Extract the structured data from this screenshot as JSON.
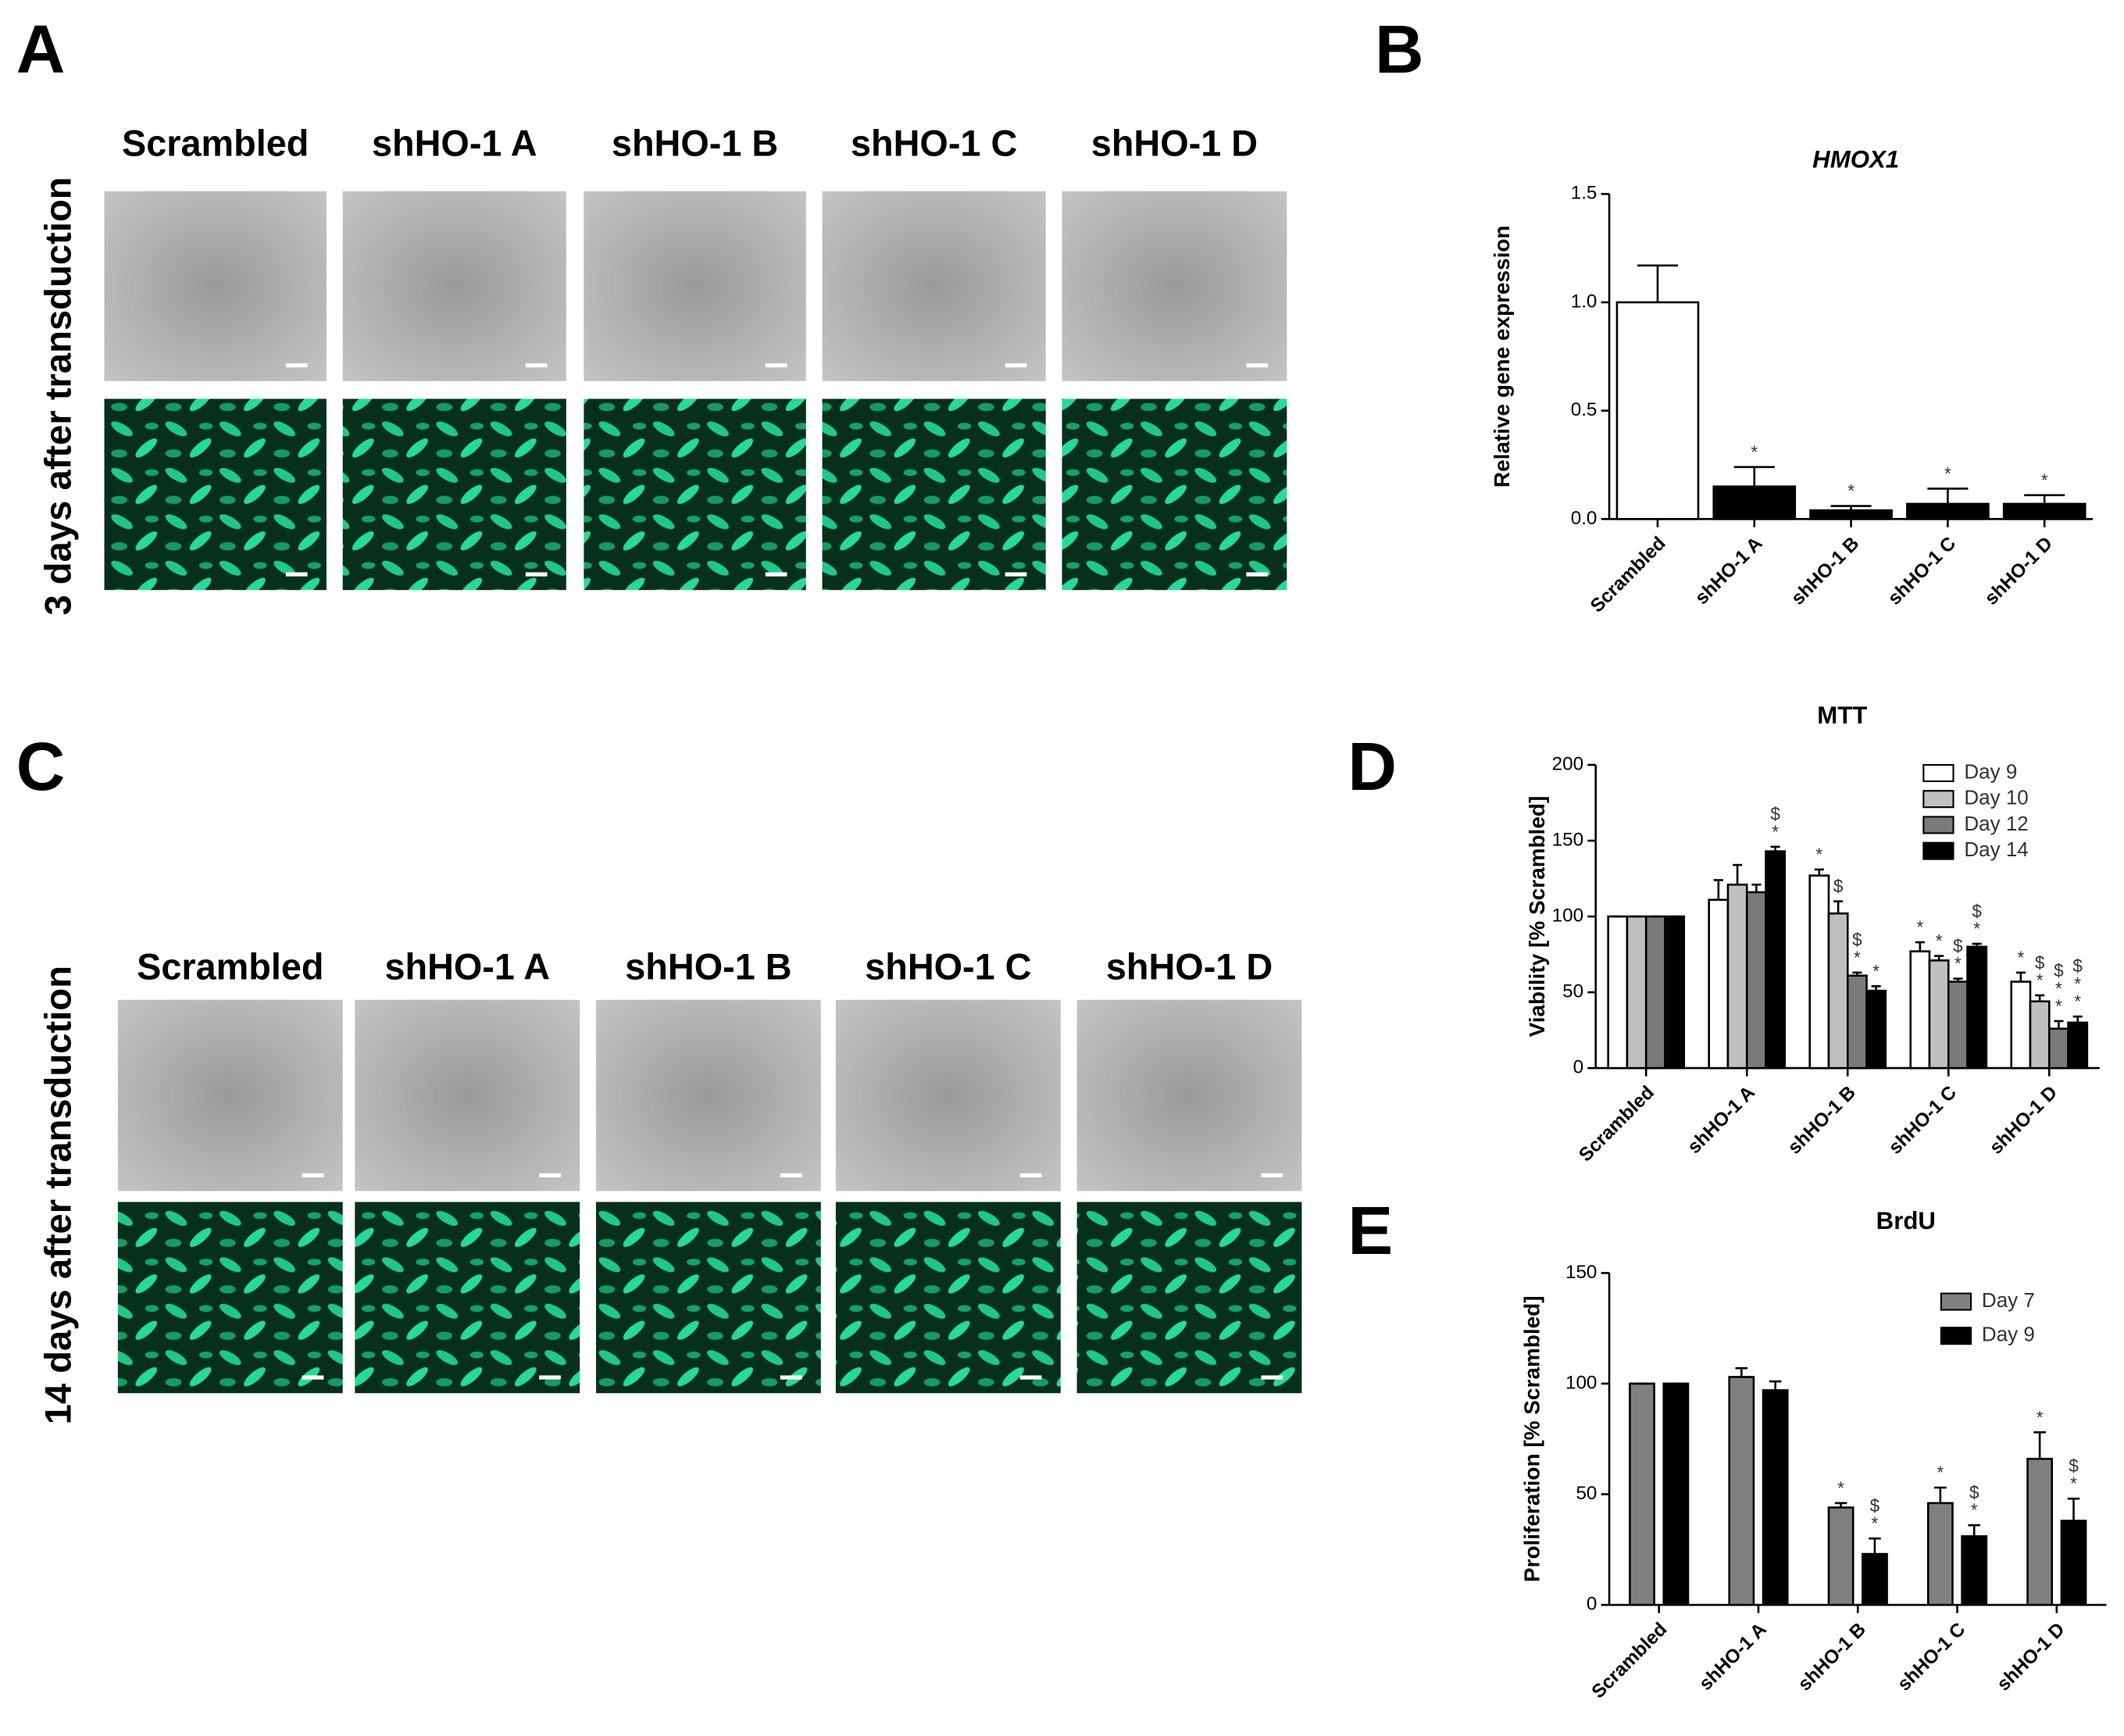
{
  "panels": {
    "letters": [
      "A",
      "B",
      "C",
      "D",
      "E"
    ],
    "microscopy": [
      {
        "side_label": "3 days after transduction",
        "conditions": [
          "Scrambled",
          "shHO-1 A",
          "shHO-1 B",
          "shHO-1 C",
          "shHO-1 D"
        ]
      },
      {
        "side_label": "14 days after transduction",
        "conditions": [
          "Scrambled",
          "shHO-1 A",
          "shHO-1 B",
          "shHO-1 C",
          "shHO-1 D"
        ]
      }
    ]
  },
  "chart_data": [
    {
      "type": "bar",
      "title": "HMOX1",
      "y_label": "Relative gene expression",
      "categories": [
        "Scrambled",
        "shHO-1 A",
        "shHO-1 B",
        "shHO-1 C",
        "shHO-1 D"
      ],
      "values": [
        1.0,
        0.15,
        0.04,
        0.07,
        0.07
      ],
      "errors": [
        0.17,
        0.09,
        0.02,
        0.07,
        0.04
      ],
      "colors": [
        "#ffffff",
        "#000000",
        "#000000",
        "#000000",
        "#000000"
      ],
      "annotations": [
        null,
        [
          "*"
        ],
        [
          "*"
        ],
        [
          "*"
        ],
        [
          "*"
        ]
      ],
      "ylim": [
        0,
        1.5
      ],
      "yticks": [
        {
          "value": 0,
          "label": "0.0"
        },
        0.5,
        {
          "value": 1,
          "label": "1.0"
        },
        1.5
      ]
    },
    {
      "type": "bar",
      "title": "MTT",
      "y_label": "Viability [% Scrambled]",
      "categories": [
        "Scrambled",
        "shHO-1 A",
        "shHO-1 B",
        "shHO-1 C",
        "shHO-1 D"
      ],
      "series": [
        {
          "name": "Day 9",
          "color": "#ffffff",
          "values": [
            100,
            111,
            127,
            77,
            57
          ],
          "errors": [
            0,
            13,
            4,
            6,
            6
          ],
          "annotations": [
            null,
            null,
            [
              "*"
            ],
            [
              "*"
            ],
            [
              "*"
            ]
          ]
        },
        {
          "name": "Day 10",
          "color": "#c0c0c0",
          "values": [
            100,
            121,
            102,
            71,
            44
          ],
          "errors": [
            0,
            13,
            8,
            3,
            4
          ],
          "annotations": [
            null,
            null,
            [
              "$"
            ],
            [
              "*"
            ],
            [
              "*",
              "$"
            ]
          ]
        },
        {
          "name": "Day 12",
          "color": "#7a7a7a",
          "values": [
            100,
            116,
            61,
            57,
            26
          ],
          "errors": [
            0,
            5,
            2,
            2,
            5
          ],
          "annotations": [
            null,
            null,
            [
              "*",
              "$"
            ],
            [
              "*",
              "$"
            ],
            [
              "*",
              "*",
              "$"
            ]
          ]
        },
        {
          "name": "Day 14",
          "color": "#000000",
          "values": [
            100,
            143,
            51,
            80,
            30
          ],
          "errors": [
            0,
            3,
            3,
            2,
            4
          ],
          "annotations": [
            null,
            [
              "*",
              "$"
            ],
            [
              "*"
            ],
            [
              "*",
              "$"
            ],
            [
              "*",
              "*",
              "$"
            ]
          ]
        }
      ],
      "ylim": [
        0,
        200
      ],
      "yticks": [
        0,
        50,
        100,
        150,
        200
      ]
    },
    {
      "type": "bar",
      "title": "BrdU",
      "y_label": "Proliferation [% Scrambled]",
      "categories": [
        "Scrambled",
        "shHO-1 A",
        "shHO-1 B",
        "shHO-1 C",
        "shHO-1 D"
      ],
      "series": [
        {
          "name": "Day 7",
          "color": "#808080",
          "values": [
            100,
            103,
            44,
            46,
            66
          ],
          "errors": [
            0,
            4,
            2,
            7,
            12
          ],
          "annotations": [
            null,
            null,
            [
              "*"
            ],
            [
              "*"
            ],
            [
              "*"
            ]
          ]
        },
        {
          "name": "Day 9",
          "color": "#000000",
          "values": [
            100,
            97,
            23,
            31,
            38
          ],
          "errors": [
            0,
            4,
            7,
            5,
            10
          ],
          "annotations": [
            null,
            null,
            [
              "*",
              "$"
            ],
            [
              "*",
              "$"
            ],
            [
              "*",
              "$"
            ]
          ]
        }
      ],
      "ylim": [
        0,
        150
      ],
      "yticks": [
        0,
        50,
        100,
        150
      ]
    }
  ]
}
